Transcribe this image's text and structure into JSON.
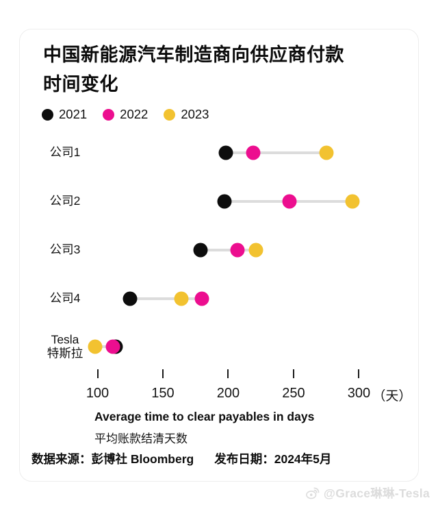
{
  "title": {
    "line1": "中国新能源汽车制造商向供应商付款",
    "line2": "时间变化"
  },
  "legend": [
    {
      "label": "2021",
      "color": "#0d0d0d"
    },
    {
      "label": "2022",
      "color": "#ec0e8f"
    },
    {
      "label": "2023",
      "color": "#f2c230"
    }
  ],
  "chart_data": {
    "type": "scatter",
    "subtype": "dumbbell-dot-plot",
    "title": "中国新能源汽车制造商向供应商付款时间变化",
    "categories": [
      "公司1",
      "公司2",
      "公司3",
      "公司4",
      "Tesla\n特斯拉"
    ],
    "series": [
      {
        "name": "2021",
        "color": "#0d0d0d",
        "values": [
          198,
          197,
          179,
          125,
          114
        ]
      },
      {
        "name": "2022",
        "color": "#ec0e8f",
        "values": [
          219,
          247,
          207,
          180,
          112
        ]
      },
      {
        "name": "2023",
        "color": "#f2c230",
        "values": [
          275,
          295,
          221,
          164,
          98
        ]
      }
    ],
    "x_ticks": [
      "100",
      "150",
      "200",
      "250",
      "300"
    ],
    "x_tick_values": [
      100,
      150,
      200,
      250,
      300
    ],
    "x_unit": "（天）",
    "xlim": [
      85,
      315
    ],
    "xlabel_en": "Average time to clear payables in days",
    "xlabel_zh": "平均账款结清天数",
    "grid": false,
    "legend_position": "top-left",
    "connector_color": "#dcdcdc"
  },
  "footer": {
    "source": "数据来源：彭博社 Bloomberg",
    "publish": "发布日期：2024年5月"
  },
  "watermark": {
    "icon": "weibo-icon",
    "handle": "@Grace琳琳-Tesla"
  }
}
